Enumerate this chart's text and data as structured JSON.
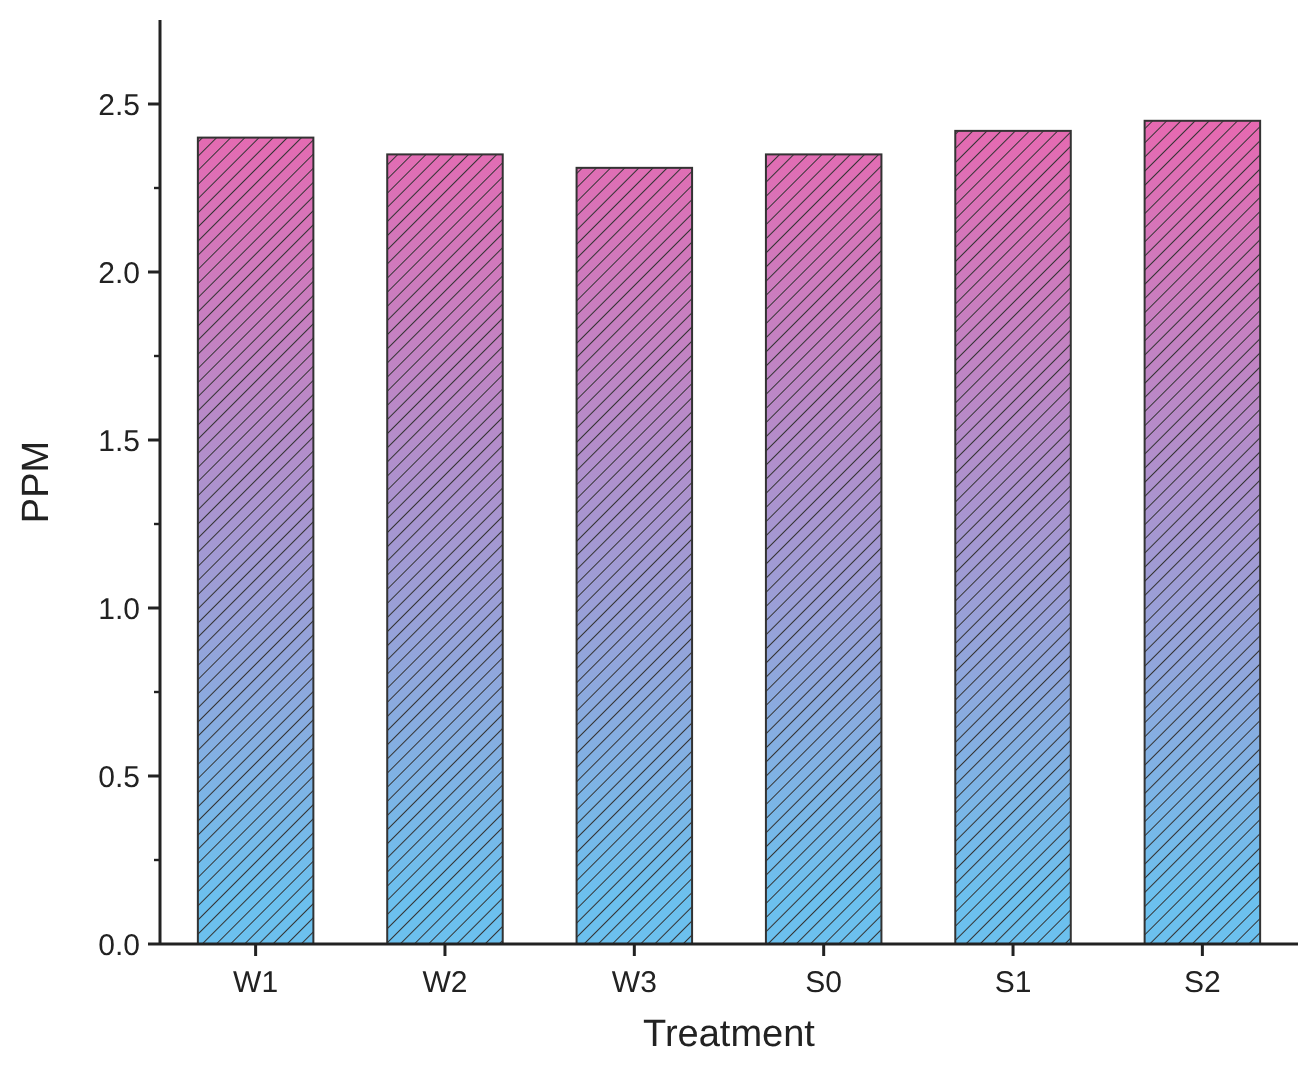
{
  "chart_data": {
    "type": "bar",
    "xlabel": "Treatment",
    "ylabel": "PPM",
    "categories": [
      "W1",
      "W2",
      "W3",
      "S0",
      "S1",
      "S2"
    ],
    "values": [
      2.4,
      2.35,
      2.31,
      2.35,
      2.42,
      2.45
    ],
    "color": "#e868b0",
    "ylim": [
      0,
      2.75
    ],
    "yticks": [
      {
        "value": 0,
        "label": "0.0"
      },
      {
        "value": 0.5,
        "label": "0.5"
      },
      {
        "value": 1,
        "label": "1.0"
      },
      {
        "value": 1.5,
        "label": "1.5"
      },
      {
        "value": 2,
        "label": "2.0"
      },
      {
        "value": 2.5,
        "label": "2.5"
      }
    ],
    "grid": false
  }
}
